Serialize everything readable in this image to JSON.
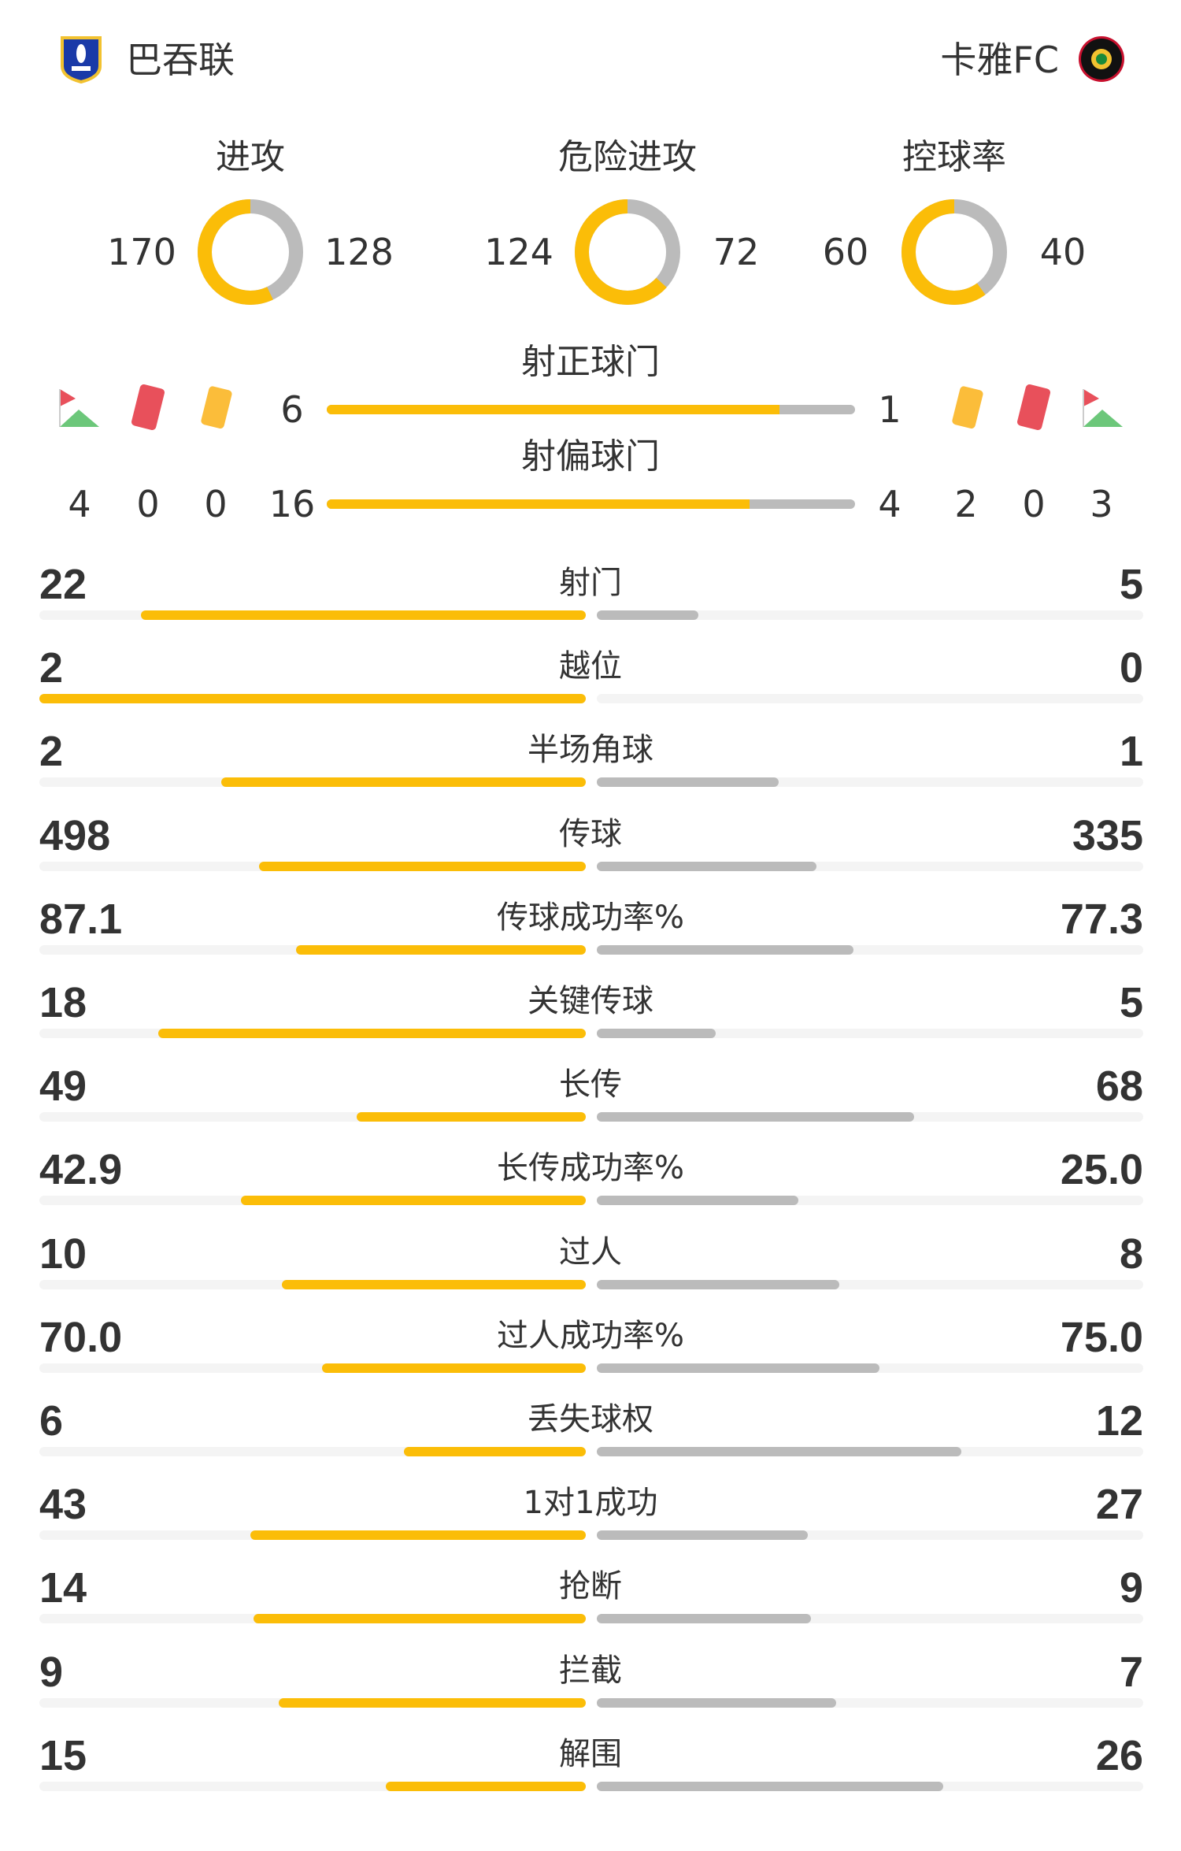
{
  "home": {
    "name": "巴吞联",
    "color": "#1a3aa8"
  },
  "away": {
    "name": "卡雅FC",
    "color": "#111111"
  },
  "colors": {
    "home": "#fbbd08",
    "away": "#bbbbbb",
    "track": "#f4f4f4"
  },
  "donuts": [
    {
      "label": "进攻",
      "home": 170,
      "away": 128
    },
    {
      "label": "危险进攻",
      "home": 124,
      "away": 72
    },
    {
      "label": "控球率",
      "home": 60,
      "away": 40
    }
  ],
  "shots_on": {
    "label": "射正球门",
    "home": 6,
    "away": 1
  },
  "shots_off": {
    "label": "射偏球门",
    "home": 16,
    "away": 4
  },
  "home_events": {
    "corners": 4,
    "red_cards": 0,
    "yellow_cards": 0
  },
  "away_events": {
    "corners": 3,
    "red_cards": 0,
    "yellow_cards": 2
  },
  "stats": [
    {
      "label": "射门",
      "home": "22",
      "away": "5"
    },
    {
      "label": "越位",
      "home": "2",
      "away": "0"
    },
    {
      "label": "半场角球",
      "home": "2",
      "away": "1"
    },
    {
      "label": "传球",
      "home": "498",
      "away": "335"
    },
    {
      "label": "传球成功率%",
      "home": "87.1",
      "away": "77.3"
    },
    {
      "label": "关键传球",
      "home": "18",
      "away": "5"
    },
    {
      "label": "长传",
      "home": "49",
      "away": "68"
    },
    {
      "label": "长传成功率%",
      "home": "42.9",
      "away": "25.0"
    },
    {
      "label": "过人",
      "home": "10",
      "away": "8"
    },
    {
      "label": "过人成功率%",
      "home": "70.0",
      "away": "75.0"
    },
    {
      "label": "丢失球权",
      "home": "6",
      "away": "12"
    },
    {
      "label": "1对1成功",
      "home": "43",
      "away": "27"
    },
    {
      "label": "抢断",
      "home": "14",
      "away": "9"
    },
    {
      "label": "拦截",
      "home": "9",
      "away": "7"
    },
    {
      "label": "解围",
      "home": "15",
      "away": "26"
    }
  ]
}
